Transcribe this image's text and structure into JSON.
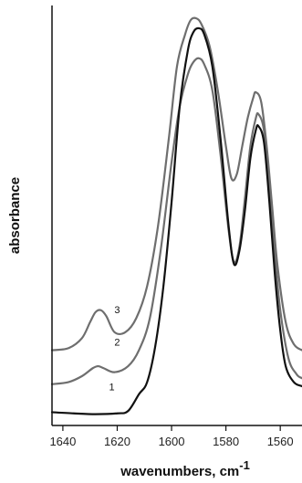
{
  "chart_data": {
    "type": "line",
    "xlabel": "wavenumbers, cm",
    "xlabel_superscript": "-1",
    "ylabel": "absorbance",
    "x_reversed": true,
    "xlim": [
      1644,
      1552
    ],
    "ylim": [
      0,
      1
    ],
    "y_ticks_shown": false,
    "x_ticks": [
      1640,
      1620,
      1600,
      1580,
      1560
    ],
    "grid": false,
    "legend": "none",
    "series": [
      {
        "label": "1",
        "label_at": [
          1622,
          0.07
        ],
        "color": "#111111",
        "stroke_width": 2.2,
        "points": [
          [
            1644,
            0.015
          ],
          [
            1636,
            0.012
          ],
          [
            1628,
            0.01
          ],
          [
            1620,
            0.012
          ],
          [
            1616,
            0.018
          ],
          [
            1612,
            0.06
          ],
          [
            1609,
            0.09
          ],
          [
            1606,
            0.18
          ],
          [
            1603,
            0.33
          ],
          [
            1600,
            0.54
          ],
          [
            1597,
            0.78
          ],
          [
            1594,
            0.92
          ],
          [
            1592,
            0.965
          ],
          [
            1590,
            0.975
          ],
          [
            1588,
            0.96
          ],
          [
            1585,
            0.88
          ],
          [
            1582,
            0.7
          ],
          [
            1579,
            0.48
          ],
          [
            1577,
            0.385
          ],
          [
            1575,
            0.42
          ],
          [
            1573,
            0.52
          ],
          [
            1571,
            0.65
          ],
          [
            1569,
            0.72
          ],
          [
            1568,
            0.73
          ],
          [
            1566,
            0.69
          ],
          [
            1564,
            0.54
          ],
          [
            1562,
            0.36
          ],
          [
            1560,
            0.22
          ],
          [
            1558,
            0.13
          ],
          [
            1555,
            0.09
          ],
          [
            1552,
            0.08
          ]
        ]
      },
      {
        "label": "2",
        "label_at": [
          1620,
          0.182
        ],
        "color": "#6e6e6e",
        "stroke_width": 2.2,
        "points": [
          [
            1644,
            0.085
          ],
          [
            1638,
            0.09
          ],
          [
            1633,
            0.105
          ],
          [
            1629,
            0.125
          ],
          [
            1627,
            0.13
          ],
          [
            1625,
            0.125
          ],
          [
            1621,
            0.115
          ],
          [
            1616,
            0.13
          ],
          [
            1612,
            0.17
          ],
          [
            1608,
            0.25
          ],
          [
            1604,
            0.42
          ],
          [
            1600,
            0.64
          ],
          [
            1597,
            0.78
          ],
          [
            1594,
            0.86
          ],
          [
            1592,
            0.89
          ],
          [
            1590,
            0.9
          ],
          [
            1588,
            0.885
          ],
          [
            1585,
            0.82
          ],
          [
            1582,
            0.66
          ],
          [
            1579,
            0.47
          ],
          [
            1577,
            0.39
          ],
          [
            1575,
            0.43
          ],
          [
            1573,
            0.55
          ],
          [
            1571,
            0.68
          ],
          [
            1569,
            0.75
          ],
          [
            1568,
            0.76
          ],
          [
            1566,
            0.72
          ],
          [
            1564,
            0.58
          ],
          [
            1562,
            0.41
          ],
          [
            1560,
            0.27
          ],
          [
            1557,
            0.15
          ],
          [
            1554,
            0.11
          ],
          [
            1552,
            0.1
          ]
        ]
      },
      {
        "label": "3",
        "label_at": [
          1620,
          0.263
        ],
        "color": "#6e6e6e",
        "stroke_width": 2.2,
        "points": [
          [
            1644,
            0.17
          ],
          [
            1638,
            0.175
          ],
          [
            1633,
            0.2
          ],
          [
            1630,
            0.24
          ],
          [
            1628,
            0.265
          ],
          [
            1626,
            0.27
          ],
          [
            1624,
            0.255
          ],
          [
            1621,
            0.215
          ],
          [
            1617,
            0.215
          ],
          [
            1613,
            0.25
          ],
          [
            1609,
            0.33
          ],
          [
            1605,
            0.48
          ],
          [
            1601,
            0.7
          ],
          [
            1598,
            0.88
          ],
          [
            1595,
            0.96
          ],
          [
            1593,
            0.995
          ],
          [
            1591,
            1.0
          ],
          [
            1589,
            0.985
          ],
          [
            1586,
            0.93
          ],
          [
            1583,
            0.82
          ],
          [
            1580,
            0.68
          ],
          [
            1578,
            0.6
          ],
          [
            1576,
            0.61
          ],
          [
            1574,
            0.68
          ],
          [
            1572,
            0.75
          ],
          [
            1570,
            0.8
          ],
          [
            1569,
            0.815
          ],
          [
            1567,
            0.79
          ],
          [
            1565,
            0.68
          ],
          [
            1563,
            0.53
          ],
          [
            1561,
            0.38
          ],
          [
            1558,
            0.24
          ],
          [
            1555,
            0.185
          ],
          [
            1552,
            0.17
          ]
        ]
      }
    ]
  }
}
